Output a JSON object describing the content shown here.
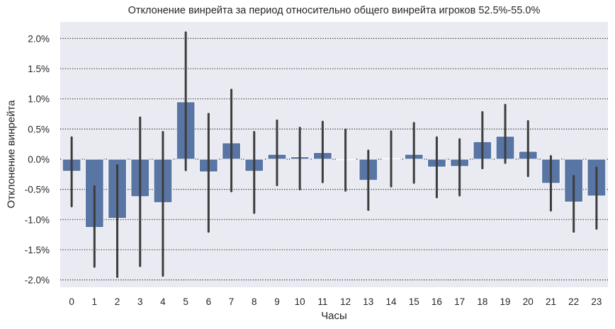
{
  "chart_data": {
    "type": "bar",
    "title": "Отклонение винрейта за период относительно общего винрейта игроков 52.5%-55.0%",
    "xlabel": "Часы",
    "ylabel": "Отклонение винрейта",
    "categories": [
      "0",
      "1",
      "2",
      "3",
      "4",
      "5",
      "6",
      "7",
      "8",
      "9",
      "10",
      "11",
      "12",
      "13",
      "14",
      "15",
      "16",
      "17",
      "18",
      "19",
      "20",
      "21",
      "22",
      "23"
    ],
    "values": [
      -0.2,
      -1.13,
      -0.98,
      -0.62,
      -0.72,
      0.95,
      -0.21,
      0.27,
      -0.2,
      0.08,
      0.04,
      0.11,
      -0.01,
      -0.35,
      0.01,
      0.08,
      -0.13,
      -0.12,
      0.29,
      0.38,
      0.13,
      -0.4,
      -0.71,
      -0.61
    ],
    "error_low": [
      -0.78,
      -1.78,
      -1.95,
      -1.77,
      -1.93,
      -0.18,
      -1.2,
      -0.53,
      -0.89,
      -0.43,
      -0.5,
      -0.38,
      -0.52,
      -0.84,
      -0.45,
      -0.39,
      -0.63,
      -0.6,
      -0.15,
      -0.06,
      -0.28,
      -0.85,
      -1.2,
      -1.15
    ],
    "error_high": [
      0.36,
      -0.45,
      -0.1,
      0.69,
      0.45,
      2.1,
      0.75,
      1.15,
      0.45,
      0.64,
      0.52,
      0.62,
      0.49,
      0.14,
      0.46,
      0.6,
      0.36,
      0.33,
      0.78,
      0.9,
      0.63,
      0.05,
      -0.28,
      -0.14
    ],
    "unit": "%",
    "ylim": [
      -2.2,
      2.3
    ],
    "yticks": [
      -2.0,
      -1.5,
      -1.0,
      -0.5,
      0.0,
      0.5,
      1.0,
      1.5,
      2.0
    ],
    "ytick_labels": [
      "-2.0%",
      "-1.5%",
      "-1.0%",
      "-0.5%",
      "0.0%",
      "0.5%",
      "1.0%",
      "1.5%",
      "2.0%"
    ],
    "grid": "horizontal dotted",
    "legend": null,
    "colors": {
      "bar": "#5875a4",
      "error_bar": "#3d3d3d",
      "background": "#eaeaf2",
      "grid": "#262626"
    }
  }
}
